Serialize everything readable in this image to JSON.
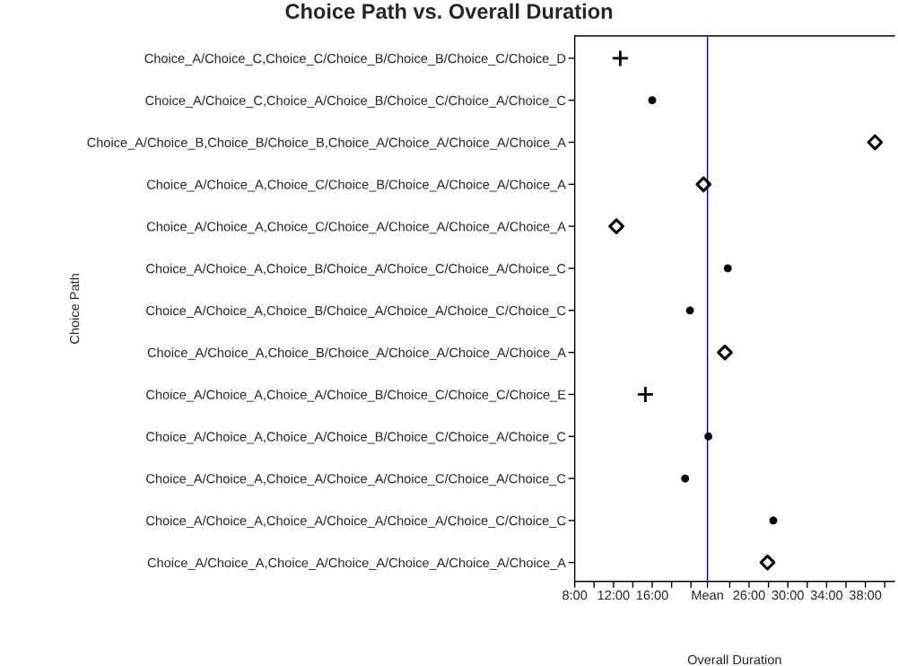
{
  "chart_data": {
    "type": "scatter",
    "title": "Choice Path vs. Overall Duration",
    "xlabel": "Overall Duration",
    "ylabel": "Choice Path",
    "categories": [
      "Choice_A/Choice_C,Choice_C/Choice_B/Choice_B/Choice_C/Choice_D",
      "Choice_A/Choice_C,Choice_A/Choice_B/Choice_C/Choice_A/Choice_C",
      "Choice_A/Choice_B,Choice_B/Choice_B,Choice_A/Choice_A/Choice_A/Choice_A",
      "Choice_A/Choice_A,Choice_C/Choice_B/Choice_A/Choice_A/Choice_A",
      "Choice_A/Choice_A,Choice_C/Choice_A/Choice_A/Choice_A/Choice_A",
      "Choice_A/Choice_A,Choice_B/Choice_A/Choice_C/Choice_A/Choice_C",
      "Choice_A/Choice_A,Choice_B/Choice_A/Choice_A/Choice_C/Choice_C",
      "Choice_A/Choice_A,Choice_B/Choice_A/Choice_A/Choice_A/Choice_A",
      "Choice_A/Choice_A,Choice_A/Choice_B/Choice_C/Choice_C/Choice_E",
      "Choice_A/Choice_A,Choice_A/Choice_B/Choice_C/Choice_A/Choice_C",
      "Choice_A/Choice_A,Choice_A/Choice_A/Choice_C/Choice_A/Choice_C",
      "Choice_A/Choice_A,Choice_A/Choice_A/Choice_A/Choice_C/Choice_C",
      "Choice_A/Choice_A,Choice_A/Choice_A/Choice_A/Choice_A/Choice_A"
    ],
    "orientation": "horizontal",
    "series": [
      {
        "color": "#000000",
        "marker": "cross",
        "values": [
          12.7,
          null,
          null,
          null,
          null,
          null,
          null,
          null,
          15.3,
          null,
          null,
          null,
          null
        ]
      },
      {
        "color": "#000000",
        "marker": "circle",
        "values": [
          null,
          16.0,
          null,
          null,
          null,
          23.8,
          19.9,
          null,
          null,
          21.8,
          19.4,
          28.5,
          null
        ]
      },
      {
        "color": "#000000",
        "marker": "diamond",
        "values": [
          null,
          null,
          39.0,
          21.3,
          12.3,
          null,
          null,
          23.5,
          null,
          null,
          null,
          null,
          27.9
        ]
      }
    ],
    "xlim": [
      8,
      41
    ],
    "xticks": [
      {
        "value": 8,
        "label": "8:00"
      },
      {
        "value": 10,
        "label": null
      },
      {
        "value": 12,
        "label": "12:00"
      },
      {
        "value": 14,
        "label": null
      },
      {
        "value": 16,
        "label": "16:00"
      },
      {
        "value": 18,
        "label": null
      },
      {
        "value": 20,
        "label": null
      },
      {
        "value": 21.7,
        "label": "Mean"
      },
      {
        "value": 24,
        "label": null
      },
      {
        "value": 26,
        "label": "26:00"
      },
      {
        "value": 28,
        "label": null
      },
      {
        "value": 30,
        "label": "30:00"
      },
      {
        "value": 32,
        "label": null
      },
      {
        "value": 34,
        "label": "34:00"
      },
      {
        "value": 36,
        "label": null
      },
      {
        "value": 38,
        "label": "38:00"
      },
      {
        "value": 40,
        "label": null
      }
    ],
    "ref_lines": [
      {
        "axis": "x",
        "value": 21.7,
        "color": "#0000cc",
        "line_style": "solid"
      }
    ],
    "grid": false
  }
}
